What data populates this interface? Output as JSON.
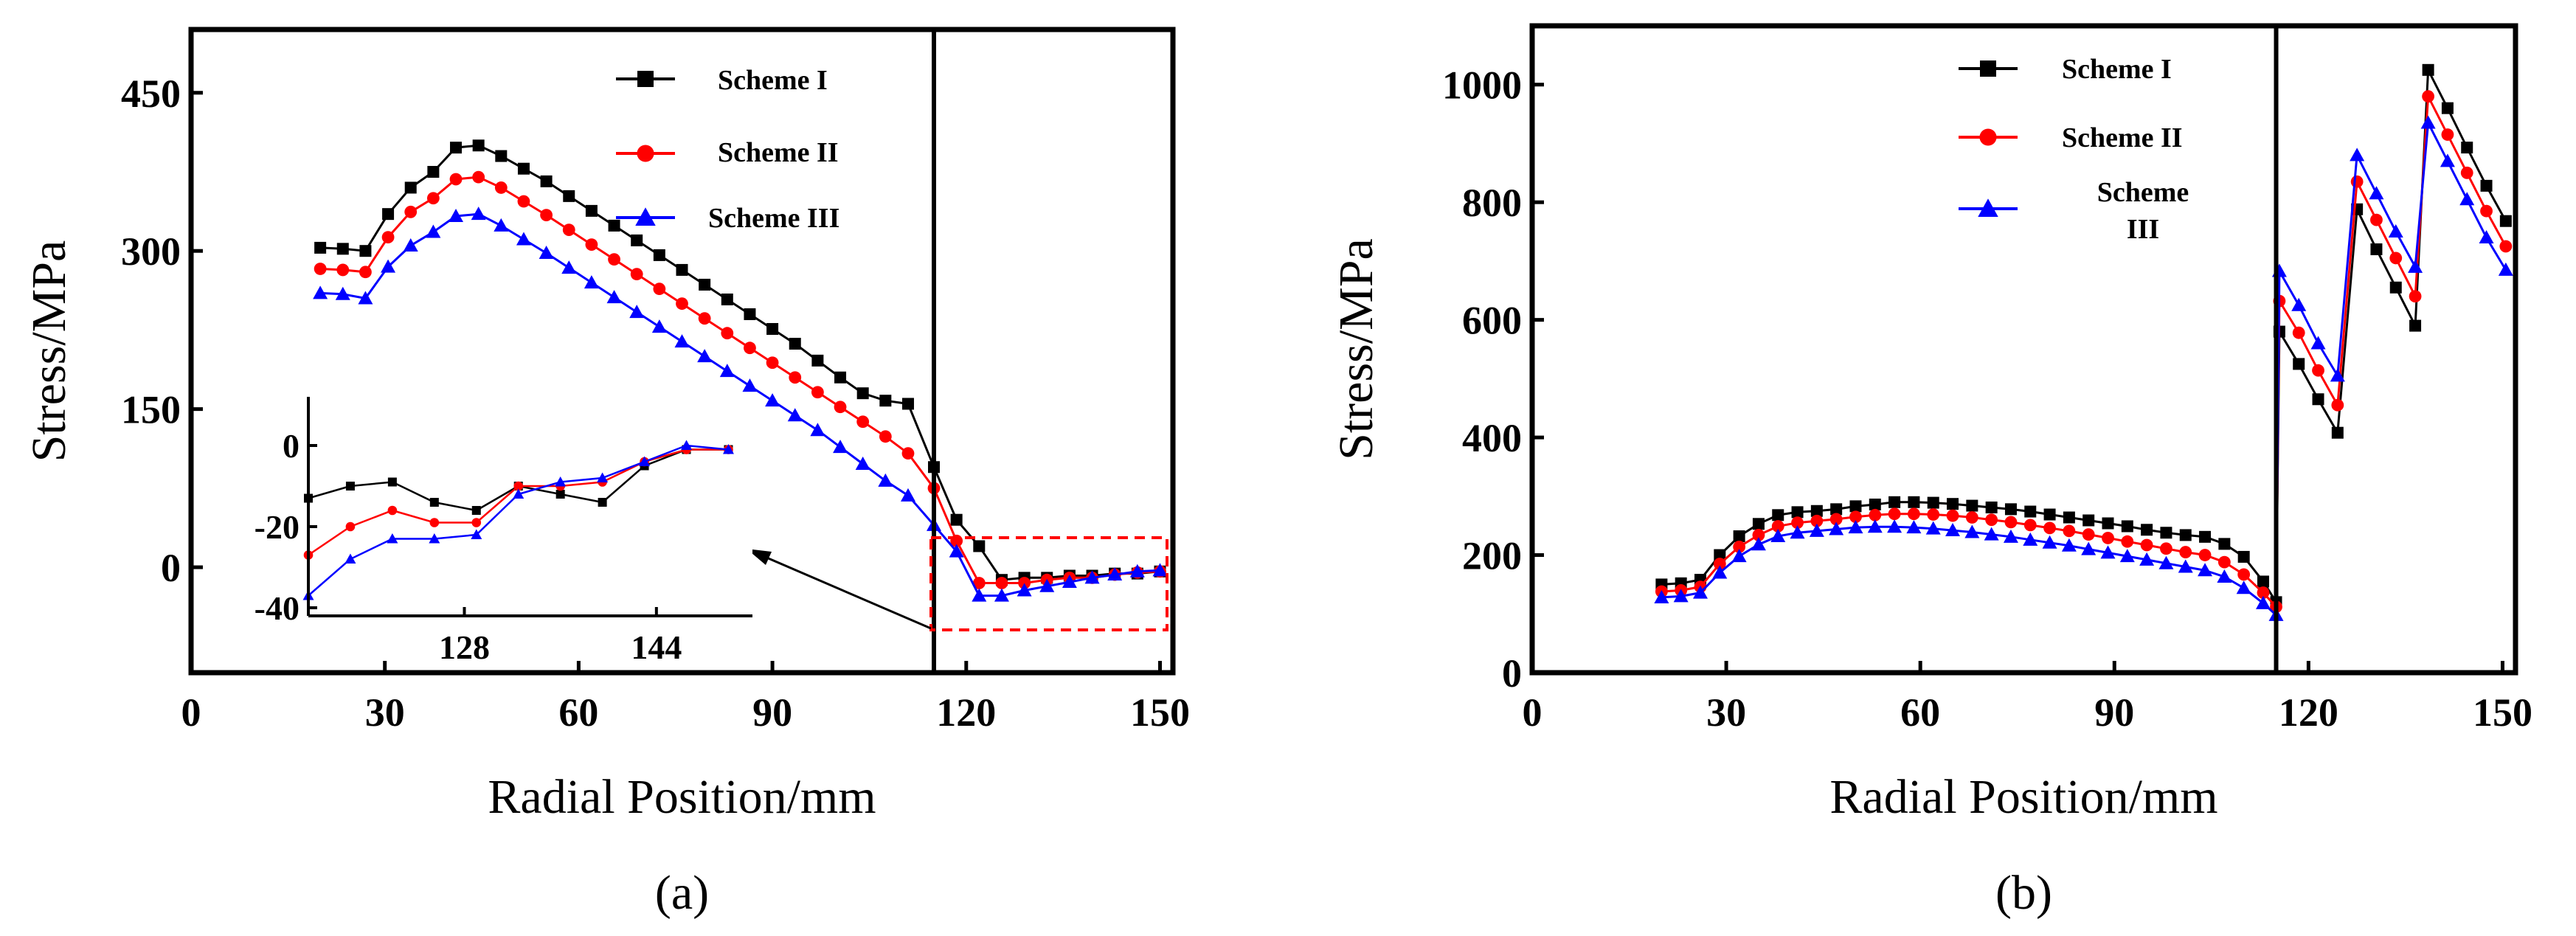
{
  "colors": {
    "scheme1": "#000000",
    "scheme2": "#ff0000",
    "scheme3": "#0000ff",
    "zoom_box": "#ff0000"
  },
  "chart_data": [
    {
      "panel": "(a)",
      "type": "line",
      "xlabel": "Radial Position/mm",
      "ylabel": "Stress/MPa",
      "xlim": [
        0,
        152
      ],
      "ylim": [
        -100,
        510
      ],
      "xticks": [
        0,
        30,
        60,
        90,
        120,
        150
      ],
      "yticks": [
        0,
        150,
        300,
        450
      ],
      "vline_x": 115,
      "legend_position": "top-right",
      "marker_symbols": [
        "square",
        "circle",
        "triangle"
      ],
      "series": [
        {
          "name": "Scheme I",
          "x": [
            20,
            23.5,
            27,
            30.5,
            34,
            37.5,
            41,
            44.5,
            48,
            51.5,
            55,
            58.5,
            62,
            65.5,
            69,
            72.5,
            76,
            79.5,
            83,
            86.5,
            90,
            93.5,
            97,
            100.5,
            104,
            107.5,
            111,
            115,
            118.5,
            122,
            125.5,
            129,
            132.5,
            136,
            139.5,
            143,
            146.5,
            150
          ],
          "y": [
            303,
            302,
            300,
            335,
            360,
            375,
            398,
            400,
            390,
            378,
            366,
            352,
            338,
            324,
            310,
            296,
            282,
            268,
            254,
            240,
            226,
            212,
            196,
            180,
            165,
            158,
            155,
            95,
            45,
            20,
            -12,
            -10,
            -10,
            -8,
            -8,
            -6,
            -6,
            -4
          ]
        },
        {
          "name": "Scheme II",
          "x": [
            20,
            23.5,
            27,
            30.5,
            34,
            37.5,
            41,
            44.5,
            48,
            51.5,
            55,
            58.5,
            62,
            65.5,
            69,
            72.5,
            76,
            79.5,
            83,
            86.5,
            90,
            93.5,
            97,
            100.5,
            104,
            107.5,
            111,
            115,
            118.5,
            122,
            125.5,
            129,
            132.5,
            136,
            139.5,
            143,
            146.5,
            150
          ],
          "y": [
            283,
            282,
            280,
            313,
            337,
            350,
            368,
            370,
            360,
            347,
            334,
            320,
            306,
            292,
            278,
            264,
            250,
            236,
            222,
            208,
            194,
            180,
            166,
            152,
            138,
            124,
            108,
            75,
            25,
            -15,
            -15,
            -15,
            -12,
            -10,
            -10,
            -7,
            -5,
            -4
          ]
        },
        {
          "name": "Scheme III",
          "x": [
            20,
            23.5,
            27,
            30.5,
            34,
            37.5,
            41,
            44.5,
            48,
            51.5,
            55,
            58.5,
            62,
            65.5,
            69,
            72.5,
            76,
            79.5,
            83,
            86.5,
            90,
            93.5,
            97,
            100.5,
            104,
            107.5,
            111,
            115,
            118.5,
            122,
            125.5,
            129,
            132.5,
            136,
            139.5,
            143,
            146.5,
            150
          ],
          "y": [
            260,
            259,
            255,
            285,
            305,
            318,
            333,
            335,
            324,
            311,
            298,
            284,
            270,
            256,
            242,
            228,
            214,
            200,
            186,
            172,
            158,
            144,
            130,
            114,
            98,
            82,
            68,
            40,
            15,
            -27,
            -27,
            -22,
            -18,
            -14,
            -10,
            -7,
            -4,
            -3
          ]
        }
      ]
    },
    {
      "panel": "(a) inset",
      "type": "line",
      "xlim": [
        115,
        152
      ],
      "ylim": [
        -42,
        12
      ],
      "xticks": [
        128,
        144
      ],
      "yticks": [
        0,
        -20,
        -40
      ],
      "series": [
        {
          "name": "Scheme I",
          "x": [
            115,
            118.5,
            122,
            125.5,
            129,
            132.5,
            136,
            139.5,
            143,
            146.5,
            150
          ],
          "y": [
            -13,
            -10,
            -9,
            -14,
            -16,
            -10,
            -12,
            -14,
            -5,
            -1,
            -1
          ]
        },
        {
          "name": "Scheme II",
          "x": [
            115,
            118.5,
            122,
            125.5,
            129,
            132.5,
            136,
            139.5,
            143,
            146.5,
            150
          ],
          "y": [
            -27,
            -20,
            -16,
            -19,
            -19,
            -10,
            -10,
            -9,
            -4,
            -1,
            -1
          ]
        },
        {
          "name": "Scheme III",
          "x": [
            115,
            118.5,
            122,
            125.5,
            129,
            132.5,
            136,
            139.5,
            143,
            146.5,
            150
          ],
          "y": [
            -37,
            -28,
            -23,
            -23,
            -22,
            -12,
            -9,
            -8,
            -4,
            0,
            -1
          ]
        }
      ]
    },
    {
      "panel": "(b)",
      "type": "line",
      "xlabel": "Radial Position/mm",
      "ylabel": "Stress/MPa",
      "xlim": [
        0,
        152
      ],
      "ylim": [
        0,
        1100
      ],
      "xticks": [
        0,
        30,
        60,
        90,
        120,
        150
      ],
      "yticks": [
        0,
        200,
        400,
        600,
        800,
        1000
      ],
      "vline_x": 115,
      "legend_position": "top-left of right section",
      "marker_symbols": [
        "square",
        "circle",
        "triangle"
      ],
      "series": [
        {
          "name": "Scheme I",
          "x": [
            20,
            23,
            26,
            29,
            32,
            35,
            38,
            41,
            44,
            47,
            50,
            53,
            56,
            59,
            62,
            65,
            68,
            71,
            74,
            77,
            80,
            83,
            86,
            89,
            92,
            95,
            98,
            101,
            104,
            107,
            110,
            113,
            115,
            115.5,
            118.5,
            121.5,
            124.5,
            127.5,
            130.5,
            133.5,
            136.5,
            138.5,
            141.5,
            144.5,
            147.5,
            150.5
          ],
          "y": [
            150,
            152,
            158,
            200,
            232,
            253,
            268,
            273,
            275,
            278,
            283,
            286,
            290,
            290,
            289,
            287,
            284,
            281,
            278,
            274,
            269,
            264,
            259,
            254,
            249,
            243,
            238,
            234,
            231,
            219,
            197,
            155,
            120,
            580,
            525,
            465,
            408,
            788,
            720,
            655,
            590,
            1025,
            960,
            893,
            828,
            768
          ]
        },
        {
          "name": "Scheme II",
          "x": [
            20,
            23,
            26,
            29,
            32,
            35,
            38,
            41,
            44,
            47,
            50,
            53,
            56,
            59,
            62,
            65,
            68,
            71,
            74,
            77,
            80,
            83,
            86,
            89,
            92,
            95,
            98,
            101,
            104,
            107,
            110,
            113,
            115,
            115.5,
            118.5,
            121.5,
            124.5,
            127.5,
            130.5,
            133.5,
            136.5,
            138.5,
            141.5,
            144.5,
            147.5,
            150.5
          ],
          "y": [
            138,
            140,
            146,
            185,
            214,
            234,
            249,
            255,
            258,
            261,
            265,
            268,
            270,
            270,
            269,
            267,
            264,
            260,
            256,
            251,
            246,
            241,
            235,
            229,
            223,
            217,
            211,
            205,
            200,
            188,
            167,
            136,
            112,
            632,
            578,
            514,
            455,
            835,
            770,
            705,
            640,
            980,
            915,
            850,
            785,
            725
          ]
        },
        {
          "name": "Scheme III",
          "x": [
            20,
            23,
            26,
            29,
            32,
            35,
            38,
            41,
            44,
            47,
            50,
            53,
            56,
            59,
            62,
            65,
            68,
            71,
            74,
            77,
            80,
            83,
            86,
            89,
            92,
            95,
            98,
            101,
            104,
            107,
            110,
            113,
            115,
            115.5,
            118.5,
            121.5,
            124.5,
            127.5,
            130.5,
            133.5,
            136.5,
            138.5,
            141.5,
            144.5,
            147.5,
            150.5
          ],
          "y": [
            128,
            130,
            136,
            170,
            198,
            218,
            232,
            238,
            241,
            244,
            247,
            248,
            248,
            247,
            245,
            242,
            239,
            235,
            231,
            226,
            221,
            216,
            210,
            204,
            198,
            192,
            186,
            180,
            174,
            163,
            144,
            118,
            98,
            683,
            625,
            560,
            505,
            880,
            815,
            750,
            690,
            935,
            870,
            805,
            740,
            685
          ]
        }
      ]
    }
  ]
}
